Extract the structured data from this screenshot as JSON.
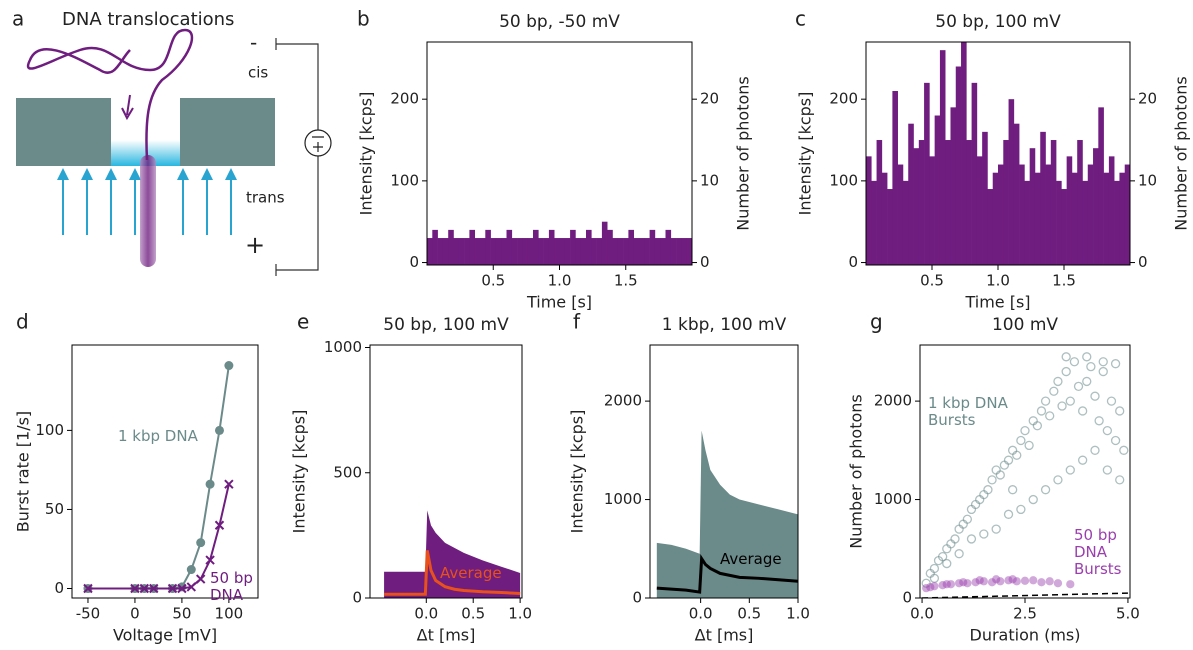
{
  "diagram": {
    "panel": "a",
    "title": "DNA translocations",
    "minus": "-",
    "cis": "cis",
    "trans": "trans",
    "plus": "+"
  },
  "chart_data": [
    {
      "type": "histogram",
      "panel": "b",
      "title": "50 bp, -50 mV",
      "xlabel": "Time [s]",
      "ylabel": "Intensity [kcps]",
      "y2label": "Number of photons",
      "color": "#6f1d7f",
      "bins": [
        0,
        0.04,
        0.08,
        0.12,
        0.16,
        0.2,
        0.24,
        0.28,
        0.32,
        0.36,
        0.4,
        0.44,
        0.48,
        0.52,
        0.56,
        0.6,
        0.64,
        0.68,
        0.72,
        0.76,
        0.8,
        0.84,
        0.88,
        0.92,
        0.96,
        1,
        1.04,
        1.08,
        1.12,
        1.16,
        1.2,
        1.24,
        1.28,
        1.32,
        1.36,
        1.4,
        1.44,
        1.48,
        1.52,
        1.56,
        1.6,
        1.64,
        1.68,
        1.72,
        1.76,
        1.8,
        1.84,
        1.88,
        1.92,
        1.96,
        2
      ],
      "values": [
        30,
        40,
        30,
        30,
        40,
        30,
        30,
        30,
        40,
        30,
        30,
        40,
        30,
        30,
        30,
        40,
        30,
        30,
        30,
        30,
        40,
        30,
        30,
        40,
        30,
        30,
        30,
        40,
        30,
        30,
        40,
        30,
        30,
        50,
        40,
        30,
        30,
        30,
        40,
        30,
        30,
        30,
        40,
        30,
        30,
        40,
        30,
        30,
        30,
        30
      ],
      "xlim": [
        0,
        2
      ],
      "xticks": [
        0.5,
        {
          "value": 1,
          "label": "1.0"
        },
        1.5
      ],
      "ylim": [
        -3,
        270
      ],
      "yticks": [
        0,
        100,
        200
      ],
      "y2lim": [
        -0.3,
        27
      ],
      "y2ticks": [
        0,
        10,
        20
      ]
    },
    {
      "type": "histogram",
      "panel": "c",
      "title": "50 bp, 100 mV",
      "xlabel": "Time [s]",
      "ylabel": "Intensity [kcps]",
      "y2label": "Number of photons",
      "color": "#6f1d7f",
      "bins": [
        0,
        0.04,
        0.08,
        0.12,
        0.16,
        0.2,
        0.24,
        0.28,
        0.32,
        0.36,
        0.4,
        0.44,
        0.48,
        0.52,
        0.56,
        0.6,
        0.64,
        0.68,
        0.72,
        0.76,
        0.8,
        0.84,
        0.88,
        0.92,
        0.96,
        1,
        1.04,
        1.08,
        1.12,
        1.16,
        1.2,
        1.24,
        1.28,
        1.32,
        1.36,
        1.4,
        1.44,
        1.48,
        1.52,
        1.56,
        1.6,
        1.64,
        1.68,
        1.72,
        1.76,
        1.8,
        1.84,
        1.88,
        1.92,
        1.96,
        2
      ],
      "values": [
        130,
        100,
        150,
        110,
        90,
        210,
        120,
        100,
        170,
        140,
        150,
        220,
        130,
        180,
        260,
        150,
        190,
        240,
        270,
        150,
        220,
        130,
        160,
        90,
        110,
        120,
        150,
        200,
        170,
        120,
        100,
        140,
        110,
        160,
        120,
        150,
        100,
        90,
        130,
        110,
        150,
        100,
        120,
        140,
        190,
        110,
        130,
        100,
        110,
        120
      ],
      "xlim": [
        0,
        2
      ],
      "xticks": [
        0.5,
        {
          "value": 1,
          "label": "1.0"
        },
        1.5
      ],
      "ylim": [
        -3,
        270
      ],
      "yticks": [
        0,
        100,
        200
      ],
      "y2lim": [
        -0.3,
        27
      ],
      "y2ticks": [
        0,
        10,
        20
      ]
    },
    {
      "type": "line",
      "panel": "d",
      "xlabel": "Voltage [mV]",
      "ylabel": "Burst rate [1/s]",
      "x": [
        -50,
        0,
        10,
        20,
        40,
        50,
        60,
        70,
        80,
        90,
        100
      ],
      "series": [
        {
          "name": "1 kbp DNA",
          "color": "#6b8a8a",
          "marker": "o",
          "values": [
            0,
            0,
            0,
            0,
            0,
            1,
            12,
            29,
            66,
            100,
            141
          ]
        },
        {
          "name": "50 bp DNA",
          "color": "#6f1d7f",
          "marker": "x",
          "values": [
            0,
            0,
            0,
            0,
            0,
            0,
            1,
            6,
            18,
            40,
            66
          ]
        }
      ],
      "xlim": [
        -67,
        131
      ],
      "xticks": [
        -50,
        0,
        50,
        100
      ],
      "ylim": [
        -6,
        154
      ],
      "yticks": [
        0,
        50,
        100
      ]
    },
    {
      "type": "average",
      "panel": "e",
      "title": "50 bp, 100 mV",
      "xlabel": "Δt [ms]",
      "ylabel": "Intensity [kcps]",
      "x": [
        -0.45,
        -0.3,
        -0.15,
        -0.01,
        0.01,
        0.05,
        0.1,
        0.2,
        0.3,
        0.4,
        0.6,
        0.8,
        1.0
      ],
      "fill": {
        "color": "#6f1d7f",
        "values": [
          105,
          105,
          105,
          105,
          350,
          290,
          260,
          220,
          200,
          180,
          150,
          125,
          100
        ]
      },
      "average": {
        "name": "Average",
        "color": "#e8501c",
        "values": [
          15,
          15,
          15,
          15,
          190,
          110,
          70,
          45,
          35,
          30,
          25,
          22,
          18
        ]
      },
      "xlim": [
        -0.6,
        1.02
      ],
      "xticks": [
        {
          "value": 0,
          "label": "0.0"
        },
        0.5,
        {
          "value": 1,
          "label": "1.0"
        }
      ],
      "ylim": [
        0,
        1010
      ],
      "yticks": [
        0,
        500,
        1000
      ]
    },
    {
      "type": "average",
      "panel": "f",
      "title": "1 kbp, 100 mV",
      "xlabel": "Δt [ms]",
      "ylabel": "Intensity [kcps]",
      "x": [
        -0.45,
        -0.3,
        -0.15,
        -0.01,
        0.01,
        0.05,
        0.1,
        0.2,
        0.3,
        0.4,
        0.6,
        0.8,
        1.0
      ],
      "fill": {
        "color": "#6b8a8a",
        "values": [
          560,
          540,
          500,
          450,
          1700,
          1500,
          1300,
          1150,
          1050,
          1000,
          950,
          900,
          850
        ]
      },
      "average": {
        "name": "Average",
        "color": "#000000",
        "values": [
          100,
          90,
          80,
          60,
          400,
          340,
          300,
          250,
          230,
          210,
          200,
          185,
          170
        ]
      },
      "xlim": [
        -0.52,
        1.0
      ],
      "xticks": [
        {
          "value": 0,
          "label": "0.0"
        },
        0.5,
        {
          "value": 1,
          "label": "1.0"
        }
      ],
      "ylim": [
        0,
        2570
      ],
      "yticks": [
        0,
        1000,
        2000
      ]
    },
    {
      "type": "scatter",
      "panel": "g",
      "title": "100 mV",
      "xlabel": "Duration (ms)",
      "ylabel": "Number of photons",
      "series": [
        {
          "name": "1 kbp DNA Bursts",
          "color": "#6b8a8a",
          "x": [
            0.1,
            0.2,
            0.3,
            0.4,
            0.5,
            0.6,
            0.7,
            0.8,
            0.9,
            1.0,
            1.1,
            1.2,
            1.3,
            1.4,
            1.5,
            1.6,
            1.7,
            1.8,
            1.9,
            2.0,
            2.1,
            2.2,
            2.3,
            2.4,
            2.5,
            2.6,
            2.7,
            2.8,
            2.9,
            3.0,
            3.1,
            3.2,
            3.3,
            3.4,
            3.5,
            3.6,
            3.7,
            3.8,
            3.9,
            4.0,
            4.1,
            4.2,
            4.3,
            4.4,
            4.5,
            4.6,
            4.7,
            4.8,
            4.9,
            0.3,
            0.6,
            0.9,
            1.2,
            1.5,
            1.8,
            2.1,
            2.4,
            2.7,
            3.0,
            3.3,
            3.6,
            3.9,
            4.2,
            4.5,
            4.8,
            3.5,
            4.0,
            4.4,
            4.7,
            2.2
          ],
          "values": [
            150,
            250,
            300,
            380,
            420,
            500,
            550,
            600,
            700,
            750,
            800,
            900,
            950,
            1000,
            1050,
            1100,
            1200,
            1300,
            1250,
            1350,
            1400,
            1500,
            1450,
            1600,
            1700,
            1550,
            1800,
            1750,
            1900,
            2000,
            1850,
            2100,
            2200,
            1950,
            2300,
            2000,
            2400,
            2150,
            1900,
            2200,
            2350,
            2050,
            1800,
            2400,
            1700,
            2000,
            1600,
            1900,
            1500,
            200,
            350,
            450,
            600,
            650,
            700,
            850,
            900,
            1000,
            1100,
            1200,
            1300,
            1400,
            1500,
            1300,
            1200,
            2450,
            2450,
            2300,
            2380,
            1100
          ]
        },
        {
          "name": "50 bp DNA Bursts",
          "color": "#9b3fae",
          "x": [
            0.1,
            0.3,
            0.5,
            0.7,
            0.9,
            1.1,
            1.3,
            1.5,
            1.7,
            1.9,
            2.1,
            2.3,
            2.5,
            2.7,
            2.9,
            3.1,
            3.3,
            3.6,
            0.2,
            0.6,
            1.0,
            1.4,
            1.8,
            2.2
          ],
          "values": [
            100,
            120,
            130,
            140,
            150,
            150,
            160,
            170,
            160,
            170,
            180,
            170,
            175,
            180,
            160,
            170,
            150,
            140,
            110,
            140,
            160,
            180,
            190,
            190
          ]
        }
      ],
      "dashed": {
        "x": [
          0,
          5
        ],
        "values": [
          0,
          50
        ]
      },
      "xlim": [
        -0.05,
        5.05
      ],
      "xticks": [
        {
          "value": 0,
          "label": "0.0"
        },
        2.5,
        {
          "value": 5,
          "label": "5.0"
        }
      ],
      "ylim": [
        0,
        2570
      ],
      "yticks": [
        0,
        1000,
        2000
      ]
    }
  ]
}
